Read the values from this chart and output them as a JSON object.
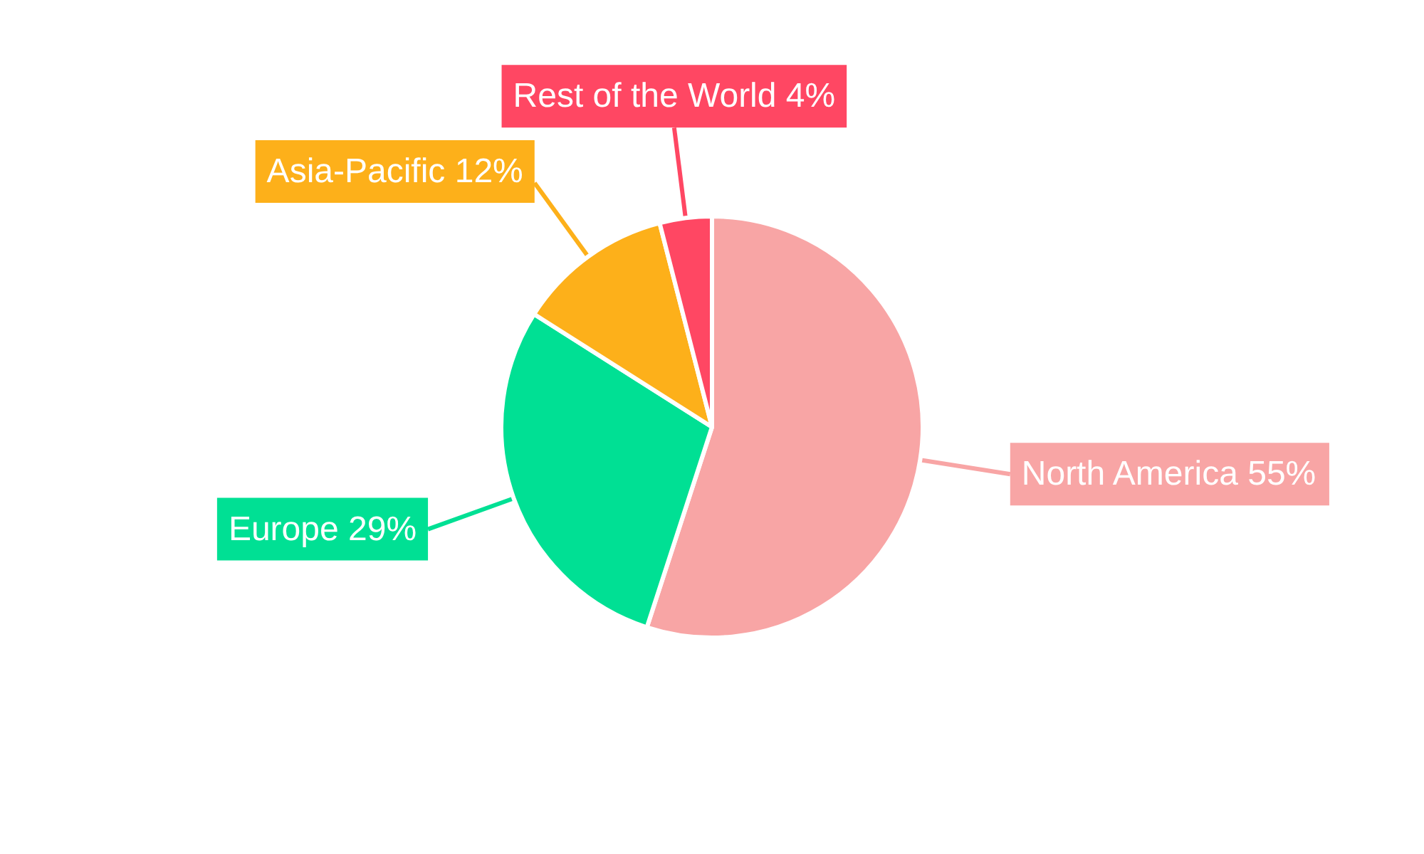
{
  "chart_data": {
    "type": "pie",
    "categories": [
      "North America",
      "Europe",
      "Asia-Pacific",
      "Rest of the World"
    ],
    "values": [
      55,
      29,
      12,
      4
    ],
    "value_labels": [
      "55%",
      "29%",
      "12%",
      "4%"
    ],
    "colors": [
      "#f8a5a5",
      "#00e094",
      "#fdb01a",
      "#ff4763"
    ],
    "legend": false
  }
}
